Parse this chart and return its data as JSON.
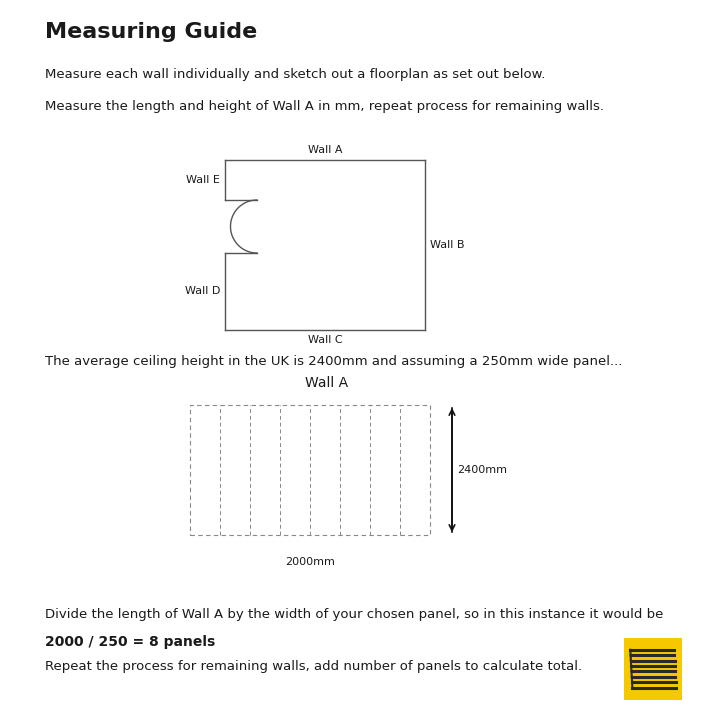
{
  "title": "Measuring Guide",
  "bg_color": "#ffffff",
  "text_color": "#1a1a1a",
  "line_color": "#555555",
  "para1": "Measure each wall individually and sketch out a floorplan as set out below.",
  "para2": "Measure the length and height of Wall A in mm, repeat process for remaining walls.",
  "para3": "The average ceiling height in the UK is 2400mm and assuming a 250mm wide panel...",
  "para4": "Divide the length of Wall A by the width of your chosen panel, so in this instance it would be",
  "para4b": "2000 / 250 = 8 panels",
  "para5": "Repeat the process for remaining walls, add number of panels to calculate total.",
  "wall_a_label": "Wall A",
  "wall_b_label": "Wall B",
  "wall_c_label": "Wall C",
  "wall_d_label": "Wall D",
  "wall_e_label": "Wall E",
  "wall_a_label2": "Wall A",
  "dim_width": "2000mm",
  "dim_height": "2400mm",
  "logo_color": "#f5c800",
  "icon_color": "#2a2a2a",
  "n_panels": 8
}
